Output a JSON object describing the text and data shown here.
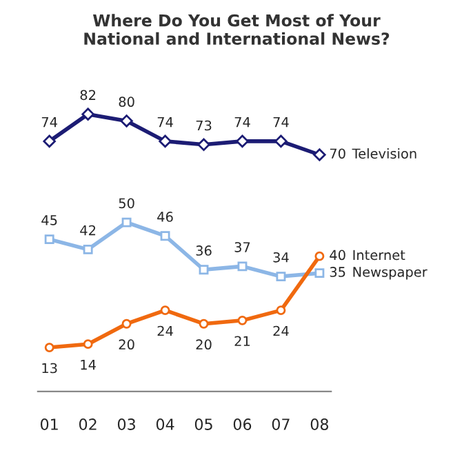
{
  "chart_data": {
    "type": "line",
    "title": "Where Do You Get Most of Your\nNational and International News?",
    "categories": [
      "01",
      "02",
      "03",
      "04",
      "05",
      "06",
      "07",
      "08"
    ],
    "series": [
      {
        "name": "Television",
        "color": "#1c1c74",
        "marker": "diamond",
        "values": [
          74,
          82,
          80,
          74,
          73,
          74,
          74,
          70
        ]
      },
      {
        "name": "Newspaper",
        "color": "#8cb6e6",
        "marker": "square",
        "values": [
          45,
          42,
          50,
          46,
          36,
          37,
          34,
          35
        ]
      },
      {
        "name": "Internet",
        "color": "#f0690f",
        "marker": "circle",
        "values": [
          13,
          14,
          20,
          24,
          20,
          21,
          24,
          40
        ]
      }
    ],
    "data_labels": true,
    "tick_labels": "x",
    "grid": false,
    "legend": false,
    "line_style": "solid"
  }
}
